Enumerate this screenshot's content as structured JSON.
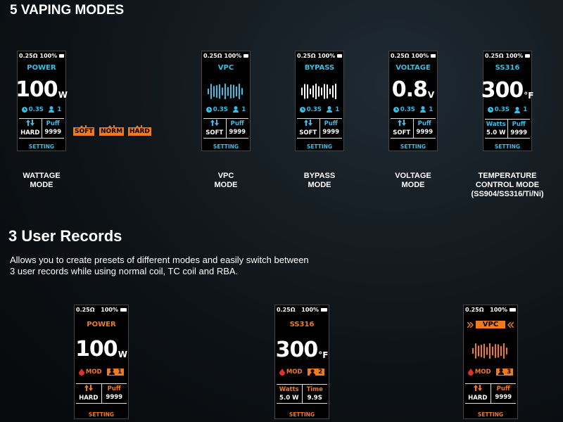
{
  "section1": {
    "title": "5 VAPING MODES",
    "accent": "#3cbde6",
    "screens": [
      {
        "resistance": "0.25Ω",
        "battery": "100%",
        "mode": "POWER",
        "value": "100",
        "unit": "W",
        "timer": "0.3S",
        "user": "1",
        "left_value": "HARD",
        "right_label": "Puff",
        "right_value": "9999",
        "footer": "SETTING",
        "caption": [
          "WATTAGE",
          "MODE"
        ]
      },
      {
        "resistance": "0.25Ω",
        "battery": "100%",
        "mode": "VPC",
        "timer": "0.3S",
        "user": "1",
        "left_value": "SOFT",
        "right_label": "Puff",
        "right_value": "9999",
        "footer": "SETTING",
        "caption": [
          "VPC",
          "MODE"
        ]
      },
      {
        "resistance": "0.25Ω",
        "battery": "100%",
        "mode": "BYPASS",
        "timer": "0.3S",
        "user": "1",
        "left_value": "SOFT",
        "right_label": "Puff",
        "right_value": "9999",
        "footer": "SETTING",
        "caption": [
          "BYPASS",
          "MODE"
        ]
      },
      {
        "resistance": "0.25Ω",
        "battery": "100%",
        "mode": "VOLTAGE",
        "value": "0.8",
        "unit": "V",
        "timer": "0.3S",
        "user": "1",
        "left_value": "SOFT",
        "right_label": "Puff",
        "right_value": "9999",
        "footer": "SETTING",
        "caption": [
          "VOLTAGE",
          "MODE"
        ]
      },
      {
        "resistance": "0.25Ω",
        "battery": "100%",
        "mode": "SS316",
        "value": "300",
        "unit": "°F",
        "timer": "0.3S",
        "user": "1",
        "left_label": "Watts",
        "left_value": "5.0 W",
        "right_label": "Puff",
        "right_value": "9999",
        "footer": "SETTING",
        "caption": [
          "TEMPERATURE",
          "CONTROL MODE",
          "(SS904/SS316/Ti/Ni)"
        ]
      }
    ],
    "levels": [
      "SOFT",
      "NORM",
      "HARD"
    ]
  },
  "section2": {
    "title": "3 User Records",
    "description": [
      "Allows you to create presets of different modes and easily switch between",
      "3 user records while using normal coil, TC coil and RBA."
    ],
    "accent": "#f07a1e",
    "screens": [
      {
        "resistance": "0.25Ω",
        "battery": "100%",
        "mode": "POWER",
        "value": "100",
        "unit": "W",
        "mode_tag": "MOD",
        "user": "1",
        "left_value": "HARD",
        "right_label": "Puff",
        "right_value": "9999",
        "footer": "SETTING"
      },
      {
        "resistance": "0.25Ω",
        "battery": "100%",
        "mode": "SS316",
        "value": "300",
        "unit": "°F",
        "mode_tag": "MOD",
        "user": "2",
        "left_label": "Watts",
        "left_value": "5.0 W",
        "right_label": "Time",
        "right_value": "9.9S",
        "footer": "SETTING"
      },
      {
        "resistance": "0.25Ω",
        "battery": "100%",
        "mode": "VPC",
        "mode_tag": "MOD",
        "user": "3",
        "left_value": "HARD",
        "right_label": "Puff",
        "right_value": "9999",
        "footer": "SETTING"
      }
    ]
  }
}
